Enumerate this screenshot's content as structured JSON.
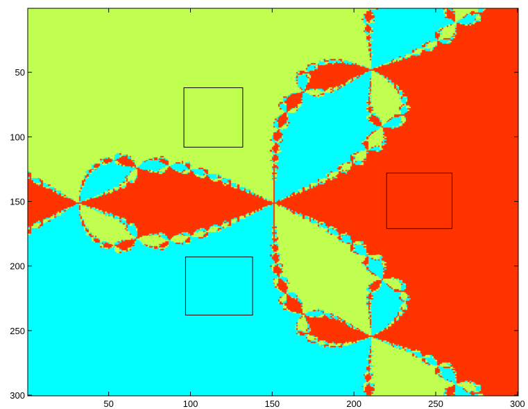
{
  "chart_data": {
    "type": "heatmap",
    "title": "",
    "xlabel": "",
    "ylabel": "",
    "description_values": "Newton fractal basins of attraction for z^3 - 1 = 0 on a 300 x 300 pixel grid, three basins; three square boxes drawn in image pixel coordinates",
    "xlim": [
      1,
      300
    ],
    "ylim": [
      1,
      300
    ],
    "y_axis_direction": "down",
    "grid": false,
    "x_ticks": [
      50,
      100,
      150,
      200,
      250,
      300
    ],
    "y_ticks": [
      50,
      100,
      150,
      200,
      250,
      300
    ],
    "x_tick_labels": [
      "50",
      "100",
      "150",
      "200",
      "250",
      "300"
    ],
    "y_tick_labels": [
      "50",
      "100",
      "150",
      "200",
      "250",
      "300"
    ],
    "grid_size": [
      300,
      300
    ],
    "basin_colors": {
      "root_1": "#ff3300",
      "root_2": "#c0ff50",
      "root_3": "#00ffff"
    },
    "boxes": [
      {
        "x": [
          96,
          132
        ],
        "y": [
          62,
          108
        ],
        "color": "#000000"
      },
      {
        "x": [
          97,
          138
        ],
        "y": [
          193,
          238
        ],
        "color": "#000000"
      },
      {
        "x": [
          220,
          260
        ],
        "y": [
          128,
          171
        ],
        "color": "#000000"
      }
    ]
  }
}
